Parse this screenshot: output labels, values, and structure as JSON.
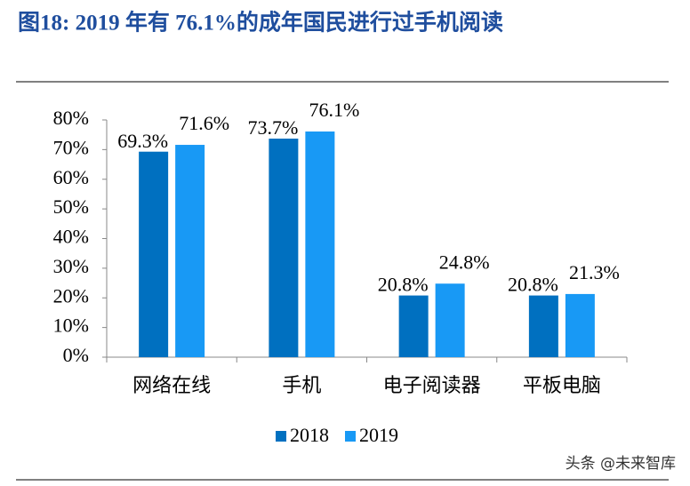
{
  "chart_data": {
    "type": "bar",
    "title": "图18:    2019 年有 76.1%的成年国民进行过手机阅读",
    "categories": [
      "网络在线",
      "手机",
      "电子阅读器",
      "平板电脑"
    ],
    "series": [
      {
        "name": "2018",
        "color": "#0070c0",
        "values": [
          69.3,
          73.7,
          20.8,
          20.8
        ],
        "value_labels": [
          "69.3%",
          "73.7%",
          "20.8%",
          "20.8%"
        ]
      },
      {
        "name": "2019",
        "color": "#1899f5",
        "values": [
          71.6,
          76.1,
          24.8,
          21.3
        ],
        "value_labels": [
          "71.6%",
          "76.1%",
          "24.8%",
          "21.3%"
        ]
      }
    ],
    "ylim": [
      0,
      80
    ],
    "yticks": [
      {
        "value": 0,
        "label": "0%"
      },
      {
        "value": 10,
        "label": "10%"
      },
      {
        "value": 20,
        "label": "20%"
      },
      {
        "value": 30,
        "label": "30%"
      },
      {
        "value": 40,
        "label": "40%"
      },
      {
        "value": 50,
        "label": "50%"
      },
      {
        "value": 60,
        "label": "60%"
      },
      {
        "value": 70,
        "label": "70%"
      },
      {
        "value": 80,
        "label": "80%"
      }
    ],
    "grid": false,
    "legend": "bottom",
    "watermark": "头条 @未来智库"
  }
}
